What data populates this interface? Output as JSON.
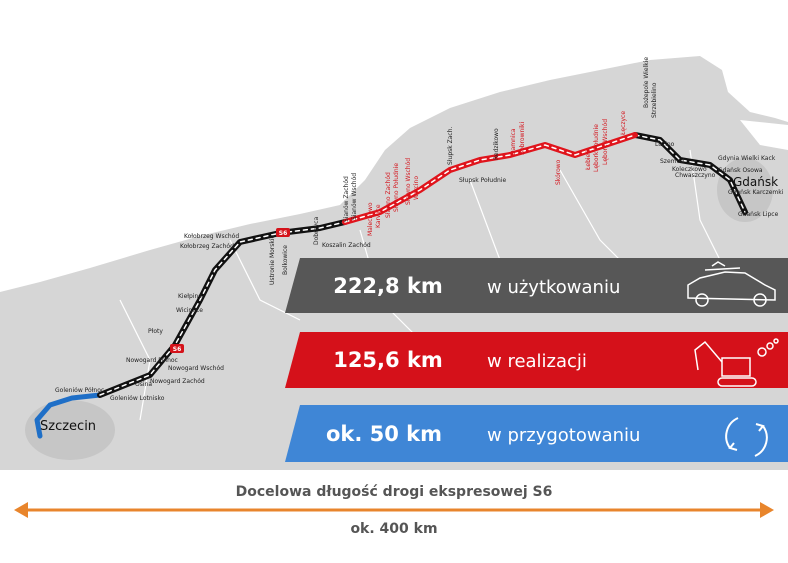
{
  "map": {
    "cities": [
      "Szczecin",
      "Gdańsk"
    ],
    "places": [
      "Goleniów Północ",
      "Goleniów Lotnisko",
      "Osina",
      "Nowogard Zachód",
      "Nowogard Północ",
      "Nowogard Wschód",
      "Płoty",
      "Wicimice",
      "Kiełpino",
      "Kołobrzeg Zachód",
      "Kołobrzeg Wschód",
      "Ustronie Morskie",
      "Bolkowice",
      "Dobrzyca",
      "Koszalin Zachód",
      "Sianów Zachód",
      "Sianów Wschód",
      "Malechowo",
      "Karwice",
      "Sławno Zachód",
      "Sławno Południe",
      "Sławno Wschód",
      "Warcino",
      "Słupsk Zach.",
      "Słupsk Południe",
      "Redzikowo",
      "Damnica",
      "Bobrowniki",
      "Skórowo",
      "Łebień",
      "Lębork Południe",
      "Lębork Wschód",
      "Łęczyce",
      "Strzebielino",
      "Bożepole Wielkie",
      "Luzino",
      "Szemud",
      "Koleczkowo",
      "Chwaszczyno",
      "Gdynia Wielki Kack",
      "Gdańsk Osowa",
      "Gdańsk Karczemki",
      "Gdańsk Lipce"
    ],
    "road_sign": "S6"
  },
  "banners": [
    {
      "amount": "222,8 km",
      "label": "w użytkowaniu"
    },
    {
      "amount": "125,6 km",
      "label": "w realizacji"
    },
    {
      "amount": "ok. 50 km",
      "label": "w przygotowaniu"
    }
  ],
  "footer": {
    "title": "Docelowa długość drogi ekspresowej S6",
    "distance": "ok. 400 km"
  }
}
